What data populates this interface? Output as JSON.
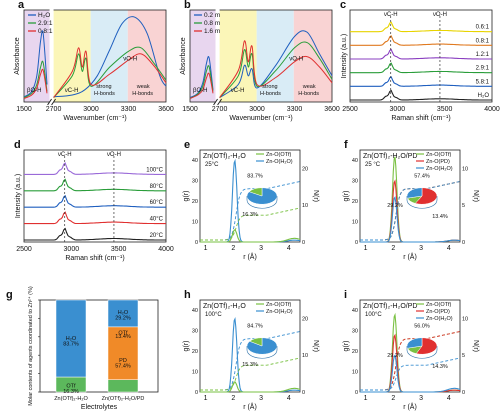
{
  "chart_data": [
    {
      "panel": "a",
      "type": "line",
      "xlabel": "Wavenumber (cm⁻¹)",
      "ylabel": "Absorbance",
      "x_ticks": [
        "1500",
        "2700",
        "3000",
        "3300",
        "3600"
      ],
      "legend": [
        {
          "name": "H₂O",
          "color": "#1f5fbf"
        },
        {
          "name": "2.9:1",
          "color": "#2a9d3a"
        },
        {
          "name": "0.8:1",
          "color": "#e03030"
        }
      ],
      "annotations": [
        "βO-H",
        "νC-H",
        "strong H-bonds",
        "weak H-bonds",
        "νO-H"
      ],
      "bands": [
        "#e8d6ef",
        "#fbf6b8",
        "#d9ecf6",
        "#f9d3d3"
      ],
      "series": [
        {
          "name": "H₂O",
          "x": [
            1500,
            1560,
            1600,
            1630,
            1650,
            1680,
            2700,
            2850,
            2950,
            3050,
            3150,
            3250,
            3350,
            3450,
            3550,
            3600
          ],
          "y": [
            0.06,
            0.12,
            0.3,
            0.7,
            0.78,
            0.2,
            0.06,
            0.08,
            0.14,
            0.3,
            0.6,
            0.9,
            0.97,
            0.78,
            0.3,
            0.18
          ]
        },
        {
          "name": "2.9:1",
          "x": [
            1500,
            1560,
            1600,
            1630,
            1650,
            1680,
            2700,
            2850,
            2900,
            2930,
            2960,
            3000,
            3150,
            3300,
            3400,
            3500,
            3600
          ],
          "y": [
            0.05,
            0.1,
            0.2,
            0.4,
            0.45,
            0.12,
            0.05,
            0.3,
            0.55,
            0.35,
            0.5,
            0.18,
            0.4,
            0.58,
            0.62,
            0.45,
            0.25
          ]
        },
        {
          "name": "0.8:1",
          "x": [
            1500,
            1560,
            1600,
            1630,
            1650,
            1680,
            2700,
            2850,
            2900,
            2930,
            2960,
            3000,
            3150,
            3300,
            3400,
            3500,
            3600
          ],
          "y": [
            0.04,
            0.08,
            0.16,
            0.32,
            0.36,
            0.1,
            0.05,
            0.35,
            0.62,
            0.4,
            0.58,
            0.2,
            0.32,
            0.48,
            0.55,
            0.42,
            0.22
          ]
        }
      ]
    },
    {
      "panel": "b",
      "type": "line",
      "xlabel": "Wavenumber (cm⁻¹)",
      "ylabel": "Absorbance",
      "x_ticks": [
        "1500",
        "2700",
        "3000",
        "3300",
        "3600"
      ],
      "legend": [
        {
          "name": "0.2 m",
          "color": "#1f5fbf"
        },
        {
          "name": "0.8 m",
          "color": "#2a9d3a"
        },
        {
          "name": "1.6 m",
          "color": "#e03030"
        }
      ],
      "annotations": [
        "βO-H",
        "νC-H",
        "strong H-bonds",
        "weak H-bonds",
        "νO-H"
      ],
      "series": [
        {
          "name": "0.2 m",
          "x": [
            1500,
            1560,
            1600,
            1630,
            1650,
            1680,
            2700,
            2850,
            2900,
            2930,
            2960,
            3000,
            3150,
            3300,
            3400,
            3500,
            3600
          ],
          "y": [
            0.05,
            0.1,
            0.22,
            0.45,
            0.5,
            0.14,
            0.05,
            0.2,
            0.42,
            0.3,
            0.38,
            0.16,
            0.42,
            0.75,
            0.8,
            0.55,
            0.3
          ]
        },
        {
          "name": "0.8 m",
          "x": [
            1500,
            1560,
            1600,
            1630,
            1650,
            1680,
            2700,
            2850,
            2900,
            2930,
            2960,
            3000,
            3150,
            3300,
            3400,
            3500,
            3600
          ],
          "y": [
            0.04,
            0.09,
            0.18,
            0.36,
            0.4,
            0.12,
            0.05,
            0.3,
            0.6,
            0.4,
            0.55,
            0.18,
            0.36,
            0.62,
            0.68,
            0.5,
            0.26
          ]
        },
        {
          "name": "1.6 m",
          "x": [
            1500,
            1560,
            1600,
            1630,
            1650,
            1680,
            2700,
            2850,
            2900,
            2930,
            2960,
            3000,
            3150,
            3300,
            3400,
            3500,
            3600
          ],
          "y": [
            0.04,
            0.08,
            0.14,
            0.28,
            0.32,
            0.1,
            0.05,
            0.36,
            0.7,
            0.46,
            0.64,
            0.2,
            0.28,
            0.46,
            0.52,
            0.4,
            0.22
          ]
        }
      ]
    },
    {
      "panel": "c",
      "type": "line",
      "xlabel": "Raman shift (cm⁻¹)",
      "ylabel": "Intensity (a.u.)",
      "x_ticks": [
        "2500",
        "3000",
        "3500",
        "4000"
      ],
      "markers": [
        {
          "label": "νC-H",
          "x": 2930
        },
        {
          "label": "νO-H",
          "x": 3450
        }
      ],
      "series": [
        {
          "name": "0.6:1",
          "color": "#e8d400",
          "label_color": "#e8d400"
        },
        {
          "name": "0.8:1",
          "color": "#e07a20"
        },
        {
          "name": "1.2:1",
          "color": "#8a3fc0"
        },
        {
          "name": "2.9:1",
          "color": "#2a9d3a"
        },
        {
          "name": "5.8:1",
          "color": "#1f5fbf"
        },
        {
          "name": "H₂O",
          "color": "#222222"
        }
      ]
    },
    {
      "panel": "d",
      "type": "line",
      "xlabel": "Raman shift (cm⁻¹)",
      "ylabel": "Intensity (a.u.)",
      "x_ticks": [
        "2500",
        "3000",
        "3500",
        "4000"
      ],
      "markers": [
        {
          "label": "νC-H",
          "x": 2930
        },
        {
          "label": "νO-H",
          "x": 3450
        }
      ],
      "series": [
        {
          "name": "100°C",
          "color": "#9a6ad8"
        },
        {
          "name": "80°C",
          "color": "#2a9d3a"
        },
        {
          "name": "60°C",
          "color": "#1f5fbf"
        },
        {
          "name": "40°C",
          "color": "#e03030"
        },
        {
          "name": "20°C",
          "color": "#222222"
        }
      ]
    },
    {
      "panel": "e",
      "type": "line",
      "title": "Zn(OTf)₂-H₂O",
      "subtitle": "25°C",
      "xlabel": "r (Å)",
      "ylabel": "g(r)",
      "y2label": "N(r)",
      "x_ticks": [
        "1",
        "2",
        "3",
        "4"
      ],
      "y_ticks": [
        "0",
        "10",
        "20",
        "30",
        "40"
      ],
      "y2_ticks": [
        "0",
        "10",
        "20"
      ],
      "legend": [
        {
          "name": "Zn-O(OTf)",
          "color": "#7ac143"
        },
        {
          "name": "Zn-O(H₂O)",
          "color": "#3a8fd0"
        }
      ],
      "pie": [
        {
          "label": "83.7%",
          "value": 83.7,
          "color": "#3a8fd0"
        },
        {
          "label": "16.3%",
          "value": 16.3,
          "color": "#7ac143"
        }
      ],
      "series": [
        {
          "name": "Zn-O(H₂O)",
          "peak_r": 2.05,
          "peak_g": 40
        },
        {
          "name": "Zn-O(OTf)",
          "peak_r": 2.05,
          "peak_g": 6
        }
      ]
    },
    {
      "panel": "f",
      "type": "line",
      "title": "Zn(OTf)₂-H₂O/PD",
      "subtitle": "25 °C",
      "xlabel": "r (Å)",
      "ylabel": "g(r)",
      "y2label": "N(r)",
      "x_ticks": [
        "1",
        "2",
        "3",
        "4"
      ],
      "y_ticks": [
        "0",
        "10",
        "20",
        "30",
        "40"
      ],
      "y2_ticks": [
        "0",
        "5",
        "10"
      ],
      "legend": [
        {
          "name": "Zn-O(OTf)",
          "color": "#7ac143"
        },
        {
          "name": "Zn-O(PD)",
          "color": "#e03030"
        },
        {
          "name": "Zn-O(H₂O)",
          "color": "#3a8fd0"
        }
      ],
      "pie": [
        {
          "label": "57.4%",
          "value": 57.4,
          "color": "#e03030"
        },
        {
          "label": "13.4%",
          "value": 13.4,
          "color": "#7ac143"
        },
        {
          "label": "29.2%",
          "value": 29.2,
          "color": "#3a8fd0"
        }
      ],
      "series": [
        {
          "name": "Zn-O(OTf)",
          "peak_r": 2.05,
          "peak_g": 42
        },
        {
          "name": "Zn-O(PD)",
          "peak_r": 2.05,
          "peak_g": 30
        },
        {
          "name": "Zn-O(H₂O)",
          "peak_r": 2.05,
          "peak_g": 22
        }
      ]
    },
    {
      "panel": "g",
      "type": "bar",
      "xlabel": "Electrolytes",
      "ylabel": "Molar contents of agents coordinated to Zn²⁺ (%)",
      "categories": [
        "Zn(OTf)₂-H₂O",
        "Zn(OTf)₂-H₂O/PD"
      ],
      "series": [
        {
          "name": "OTf",
          "values": [
            16.3,
            13.4
          ],
          "color": "#5cb85c"
        },
        {
          "name": "PD",
          "values": [
            0,
            57.4
          ],
          "color": "#f08a28"
        },
        {
          "name": "H₂O",
          "values": [
            83.7,
            29.2
          ],
          "color": "#3a8fd0"
        }
      ],
      "bar_labels": [
        [
          "OTf",
          "16.3%",
          "H₂O",
          "83.7%"
        ],
        [
          "PD",
          "57.4%",
          "OTf",
          "13.4%",
          "H₂O",
          "29.2%"
        ]
      ]
    },
    {
      "panel": "h",
      "type": "line",
      "title": "Zn(OTf)₂-H₂O",
      "subtitle": "100°C",
      "xlabel": "r (Å)",
      "ylabel": "g(r)",
      "y2label": "N(r)",
      "x_ticks": [
        "1",
        "2",
        "3",
        "4"
      ],
      "y_ticks": [
        "0",
        "10",
        "20",
        "30",
        "40"
      ],
      "y2_ticks": [
        "0",
        "10",
        "20"
      ],
      "legend": [
        {
          "name": "Zn-O(OTf)",
          "color": "#7ac143"
        },
        {
          "name": "Zn-O(H₂O)",
          "color": "#3a8fd0"
        }
      ],
      "pie": [
        {
          "label": "84.7%",
          "value": 84.7,
          "color": "#3a8fd0"
        },
        {
          "label": "15.3%",
          "value": 15.3,
          "color": "#7ac143"
        }
      ],
      "series": [
        {
          "name": "Zn-O(H₂O)",
          "peak_r": 2.05,
          "peak_g": 36
        },
        {
          "name": "Zn-O(OTf)",
          "peak_r": 2.05,
          "peak_g": 5
        }
      ]
    },
    {
      "panel": "i",
      "type": "line",
      "title": "Zn(OTf)₂-H₂O/PD",
      "subtitle": "100°C",
      "xlabel": "r (Å)",
      "ylabel": "g(r)",
      "y2label": "N(r)",
      "x_ticks": [
        "1",
        "2",
        "3",
        "4"
      ],
      "y_ticks": [
        "0",
        "10",
        "20",
        "30",
        "40"
      ],
      "y2_ticks": [
        "0",
        "5",
        "10"
      ],
      "legend": [
        {
          "name": "Zn-O(OTf)",
          "color": "#7ac143"
        },
        {
          "name": "Zn-O(PD)",
          "color": "#e03030"
        },
        {
          "name": "Zn-O(H₂O)",
          "color": "#3a8fd0"
        }
      ],
      "pie": [
        {
          "label": "56.0%",
          "value": 56.0,
          "color": "#e03030"
        },
        {
          "label": "14.3%",
          "value": 14.3,
          "color": "#7ac143"
        },
        {
          "label": "29.2%",
          "value": 29.2,
          "color": "#3a8fd0"
        }
      ],
      "series": [
        {
          "name": "Zn-O(OTf)",
          "peak_r": 2.05,
          "peak_g": 38
        },
        {
          "name": "Zn-O(PD)",
          "peak_r": 2.05,
          "peak_g": 28
        },
        {
          "name": "Zn-O(H₂O)",
          "peak_r": 2.05,
          "peak_g": 18
        }
      ]
    }
  ]
}
